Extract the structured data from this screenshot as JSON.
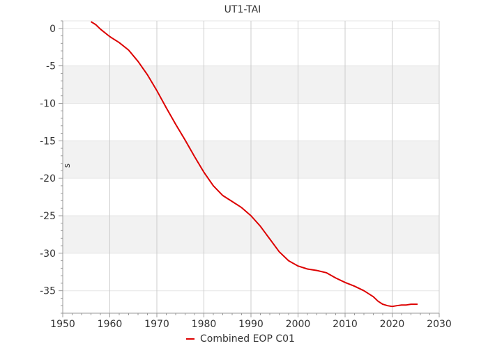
{
  "chart_data": {
    "type": "line",
    "title": "UT1-TAI",
    "xlabel": "",
    "ylabel": "s",
    "xlim": [
      1950,
      2030
    ],
    "ylim": [
      -38,
      1
    ],
    "x_ticks": [
      1950,
      1960,
      1970,
      1980,
      1990,
      2000,
      2010,
      2020,
      2030
    ],
    "y_ticks": [
      0,
      -5,
      -10,
      -15,
      -20,
      -25,
      -30,
      -35
    ],
    "grid": true,
    "alternating_bands": true,
    "legend": {
      "position": "bottom-center"
    },
    "colors": {
      "series": "#dd0000",
      "band": "#f2f2f2",
      "grid": "#cccccc"
    },
    "series": [
      {
        "name": "Combined EOP C01",
        "x": [
          1956.0,
          1957.0,
          1958.0,
          1960.0,
          1962.0,
          1964.0,
          1966.0,
          1968.0,
          1970.0,
          1972.0,
          1974.0,
          1976.0,
          1978.0,
          1980.0,
          1982.0,
          1984.0,
          1986.0,
          1988.0,
          1990.0,
          1992.0,
          1994.0,
          1996.0,
          1998.0,
          2000.0,
          2002.0,
          2004.0,
          2006.0,
          2008.0,
          2010.0,
          2012.0,
          2014.0,
          2016.0,
          2017.0,
          2018.0,
          2019.0,
          2020.0,
          2021.0,
          2022.0,
          2023.0,
          2024.0,
          2025.4
        ],
        "y": [
          0.9,
          0.5,
          -0.1,
          -1.1,
          -1.9,
          -2.9,
          -4.4,
          -6.2,
          -8.3,
          -10.6,
          -12.8,
          -14.9,
          -17.1,
          -19.2,
          -21.0,
          -22.3,
          -23.1,
          -23.9,
          -25.0,
          -26.4,
          -28.1,
          -29.8,
          -31.0,
          -31.7,
          -32.1,
          -32.3,
          -32.6,
          -33.3,
          -33.9,
          -34.4,
          -35.0,
          -35.8,
          -36.4,
          -36.8,
          -37.0,
          -37.1,
          -37.0,
          -36.9,
          -36.9,
          -36.8,
          -36.8
        ]
      }
    ]
  }
}
